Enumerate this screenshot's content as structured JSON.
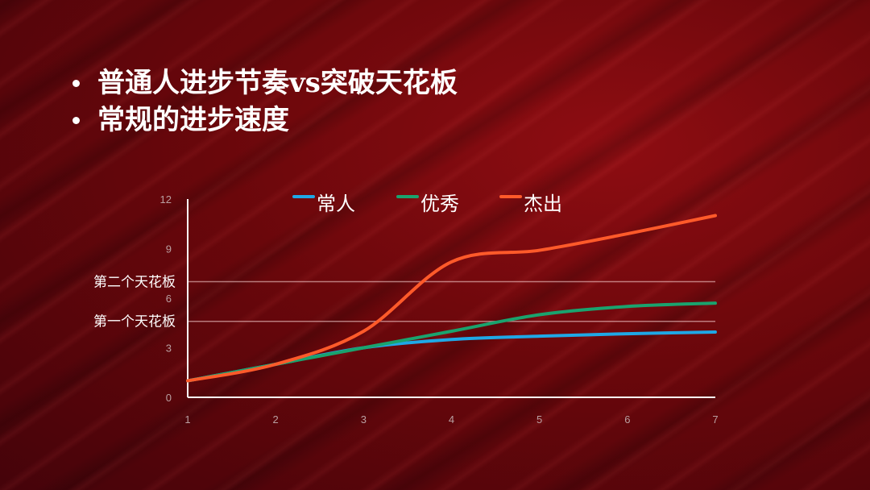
{
  "bullets": [
    "普通人进步节奏vs突破天花板",
    "常规的进步速度"
  ],
  "chart_data": {
    "type": "line",
    "title": "",
    "xlabel": "",
    "ylabel": "",
    "x": [
      1,
      2,
      3,
      4,
      5,
      6,
      7
    ],
    "xlim": [
      1,
      7
    ],
    "ylim": [
      0,
      12
    ],
    "yticks": [
      0,
      3,
      6,
      9,
      12
    ],
    "smooth": true,
    "legend_position": "top",
    "series": [
      {
        "name": "常人",
        "color": "#1fa8e6",
        "values": [
          1.0,
          2.0,
          3.0,
          3.5,
          3.7,
          3.85,
          3.95
        ]
      },
      {
        "name": "优秀",
        "color": "#1aa36e",
        "values": [
          1.0,
          2.0,
          3.0,
          4.0,
          5.0,
          5.5,
          5.7
        ]
      },
      {
        "name": "杰出",
        "color": "#ff5a2a",
        "values": [
          1.0,
          2.0,
          4.0,
          8.2,
          8.9,
          9.9,
          11.0
        ]
      }
    ],
    "reference_lines": [
      {
        "label": "第二个天花板",
        "y": 7.0
      },
      {
        "label": "第一个天花板",
        "y": 4.6
      }
    ]
  }
}
